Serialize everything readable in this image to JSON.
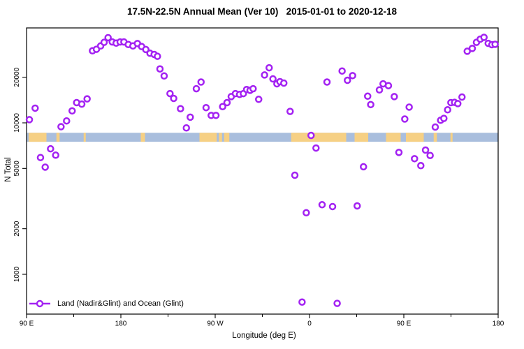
{
  "title": "17.5N-22.5N Annual Mean (Ver 10)   2015-01-01 to 2020-12-18",
  "legend": {
    "label": "Land (Nadir&Glint) and Ocean (Glint)"
  },
  "colors": {
    "marker": "#a322f2",
    "marker_fill": "#ffffff",
    "ocean": "#a9bedd",
    "land": "#f6d084",
    "axis": "#000000"
  },
  "chart_data": {
    "type": "scatter",
    "title": "17.5N-22.5N Annual Mean (Ver 10)   2015-01-01 to 2020-12-18",
    "xlabel": "Longitude (deg E)",
    "ylabel": "N Total",
    "legend": [
      "Land (Nadir&Glint) and Ocean (Glint)"
    ],
    "x_axis": {
      "range_deg": [
        90,
        540
      ],
      "wraps": true,
      "major_ticks": [
        {
          "deg": 90,
          "label": "90 E"
        },
        {
          "deg": 180,
          "label": "180"
        },
        {
          "deg": 270,
          "label": "90 W"
        },
        {
          "deg": 360,
          "label": "0"
        },
        {
          "deg": 450,
          "label": "90 E"
        },
        {
          "deg": 540,
          "label": "180"
        }
      ],
      "minor_ticks_deg": [
        135,
        225,
        315,
        405,
        495
      ]
    },
    "y_axis": {
      "scale": "log",
      "range": [
        550,
        42000
      ],
      "ticks": [
        1000,
        2000,
        5000,
        10000,
        20000
      ]
    },
    "map_band": {
      "description": "strip of world map for latitude band 17.5N-22.5N, ocean blue with land tan",
      "value_range": [
        7500,
        8600
      ],
      "land_segments_deg": [
        [
          92,
          109
        ],
        [
          118.5,
          121.5
        ],
        [
          144.5,
          146.5
        ],
        [
          199,
          203
        ],
        [
          255,
          271.5
        ],
        [
          273.5,
          276.5
        ],
        [
          278.5,
          283.5
        ],
        [
          342.5,
          395
        ],
        [
          403,
          416
        ],
        [
          433,
          447
        ],
        [
          452,
          469
        ],
        [
          478.5,
          481.5
        ],
        [
          494.5,
          496.5
        ]
      ]
    },
    "points": [
      [
        92.7,
        10500
      ],
      [
        98.2,
        12500
      ],
      [
        103.3,
        5900
      ],
      [
        107.8,
        5100
      ],
      [
        112.9,
        6740
      ],
      [
        117.8,
        6120
      ],
      [
        122.9,
        9430
      ],
      [
        128.2,
        10300
      ],
      [
        133.5,
        12000
      ],
      [
        137.8,
        13600
      ],
      [
        142.7,
        13300
      ],
      [
        147.8,
        14400
      ],
      [
        152.9,
        29900
      ],
      [
        156.7,
        30600
      ],
      [
        160.7,
        32200
      ],
      [
        164,
        34000
      ],
      [
        167.8,
        36500
      ],
      [
        171.8,
        34200
      ],
      [
        175.5,
        33600
      ],
      [
        179.3,
        34200
      ],
      [
        182.9,
        34200
      ],
      [
        187.1,
        32900
      ],
      [
        191.5,
        32200
      ],
      [
        195.8,
        33400
      ],
      [
        199.8,
        31900
      ],
      [
        203.8,
        30500
      ],
      [
        207.8,
        28800
      ],
      [
        211.8,
        28300
      ],
      [
        214.9,
        27500
      ],
      [
        217.3,
        22700
      ],
      [
        221.3,
        20400
      ],
      [
        226.9,
        15600
      ],
      [
        230.4,
        14500
      ],
      [
        236.9,
        12400
      ],
      [
        242.5,
        9260
      ],
      [
        246.2,
        10900
      ],
      [
        252,
        16800
      ],
      [
        256.5,
        18600
      ],
      [
        261.3,
        12600
      ],
      [
        266.2,
        11200
      ],
      [
        270.7,
        11200
      ],
      [
        277.1,
        12800
      ],
      [
        281.3,
        13600
      ],
      [
        285.3,
        14900
      ],
      [
        289.3,
        15600
      ],
      [
        293.3,
        15400
      ],
      [
        296.9,
        15600
      ],
      [
        300,
        16600
      ],
      [
        303.3,
        16400
      ],
      [
        306.2,
        16800
      ],
      [
        311.5,
        14300
      ],
      [
        317.1,
        20700
      ],
      [
        321.5,
        23100
      ],
      [
        325.1,
        19500
      ],
      [
        328.9,
        18100
      ],
      [
        331.8,
        18700
      ],
      [
        335.5,
        18300
      ],
      [
        341.5,
        11900
      ],
      [
        346,
        4510
      ],
      [
        352.9,
        656
      ],
      [
        356.9,
        2550
      ],
      [
        361.5,
        8260
      ],
      [
        366.2,
        6820
      ],
      [
        372,
        2880
      ],
      [
        376.7,
        18600
      ],
      [
        382,
        2800
      ],
      [
        386.4,
        643
      ],
      [
        391.1,
        22000
      ],
      [
        396.2,
        19100
      ],
      [
        401.1,
        20500
      ],
      [
        405.5,
        2830
      ],
      [
        411.5,
        5130
      ],
      [
        415.5,
        15000
      ],
      [
        418.4,
        13200
      ],
      [
        426.7,
        16500
      ],
      [
        430.2,
        18100
      ],
      [
        435.3,
        17600
      ],
      [
        440.9,
        14900
      ],
      [
        445.3,
        6380
      ],
      [
        450.9,
        10600
      ],
      [
        455.1,
        12700
      ],
      [
        460.2,
        5800
      ],
      [
        466.2,
        5220
      ],
      [
        470.7,
        6610
      ],
      [
        475.1,
        6090
      ],
      [
        480,
        9380
      ],
      [
        485.1,
        10400
      ],
      [
        488.2,
        10700
      ],
      [
        491.8,
        12200
      ],
      [
        494.9,
        13600
      ],
      [
        498.4,
        13650
      ],
      [
        501.5,
        13400
      ],
      [
        505.5,
        14800
      ],
      [
        510.5,
        29700
      ],
      [
        515.3,
        31000
      ],
      [
        519.3,
        34000
      ],
      [
        522.9,
        35700
      ],
      [
        526.5,
        36700
      ],
      [
        530.5,
        33500
      ],
      [
        534,
        32800
      ],
      [
        537.1,
        33000
      ]
    ]
  }
}
